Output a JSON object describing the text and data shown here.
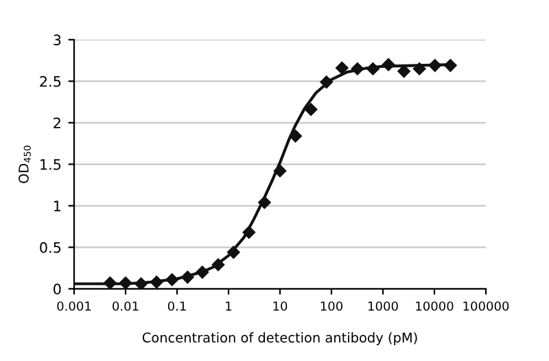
{
  "chart_data": {
    "type": "scatter",
    "xlabel": "Concentration of detection antibody (pM)",
    "ylabel": "OD$_{450}$",
    "log": "x",
    "xlim": [
      0.001,
      100000
    ],
    "xticks": [
      0.001,
      0.01,
      0.1,
      1,
      10,
      100,
      1000,
      10000,
      100000
    ],
    "ylim": [
      0,
      3
    ],
    "yticks": [
      0,
      0.5,
      1,
      1.5,
      2,
      2.5,
      3
    ],
    "grid": "y",
    "series": [
      {
        "marker": "diamond",
        "color": "#111111",
        "x": [
          0.005,
          0.01,
          0.02,
          0.04,
          0.08,
          0.16,
          0.31,
          0.63,
          1.25,
          2.5,
          5,
          10,
          20,
          40,
          80,
          160,
          320,
          640,
          1280,
          2560,
          5120,
          10240,
          20480
        ],
        "values": [
          0.07,
          0.07,
          0.06,
          0.08,
          0.11,
          0.14,
          0.2,
          0.29,
          0.44,
          0.68,
          1.04,
          1.42,
          1.84,
          2.16,
          2.49,
          2.66,
          2.65,
          2.65,
          2.7,
          2.62,
          2.65,
          2.69,
          2.69
        ]
      },
      {
        "type": "line",
        "marker": "none",
        "color": "#111111",
        "line_style": "solid",
        "x": [
          0.001,
          0.01,
          0.03,
          0.1,
          0.3,
          0.5,
          1,
          2,
          3,
          5,
          7,
          10,
          15,
          20,
          30,
          50,
          100,
          200,
          500,
          1000,
          20000
        ],
        "values": [
          0.06,
          0.06,
          0.08,
          0.12,
          0.2,
          0.26,
          0.4,
          0.62,
          0.82,
          1.1,
          1.3,
          1.52,
          1.8,
          1.97,
          2.17,
          2.36,
          2.52,
          2.61,
          2.66,
          2.68,
          2.7
        ]
      }
    ]
  }
}
